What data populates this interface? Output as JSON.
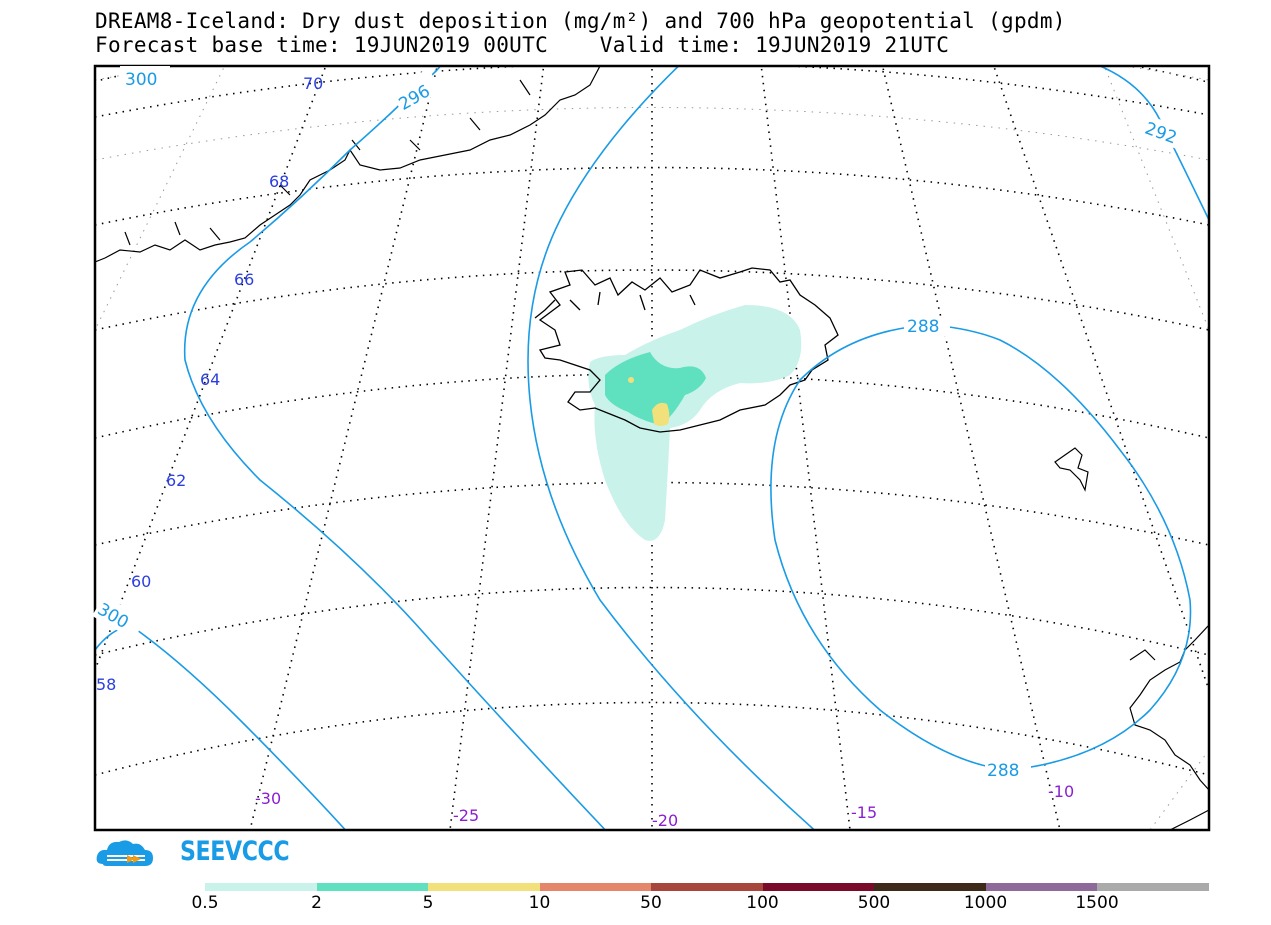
{
  "title": {
    "line1": "DREAM8-Iceland: Dry dust deposition (mg/m²) and 700 hPa geopotential (gpdm)",
    "line2": "Forecast base time: 19JUN2019 00UTC    Valid time: 19JUN2019 21UTC"
  },
  "latitude_labels": [
    "70",
    "68",
    "66",
    "64",
    "62",
    "60",
    "58"
  ],
  "longitude_labels": [
    "-30",
    "-25",
    "-20",
    "-15",
    "-10"
  ],
  "contour_labels": [
    "300",
    "296",
    "292",
    "288",
    "288",
    "300"
  ],
  "logo": {
    "text": "SEEVCCC",
    "name": "seevccc-cloud-logo"
  },
  "colorbar": {
    "labels": [
      "0.5",
      "2",
      "5",
      "10",
      "50",
      "100",
      "500",
      "1000",
      "1500"
    ],
    "colors": [
      "#c8f2ea",
      "#5fe1c0",
      "#f2e07a",
      "#e5866a",
      "#a8463e",
      "#7a0a2a",
      "#3d2a18",
      "#8e6a9a",
      "#aaaaaa"
    ]
  },
  "colors": {
    "contour": "#1a9be6",
    "lat_label": "#2b3fe0",
    "lon_label": "#8b1fd0"
  }
}
